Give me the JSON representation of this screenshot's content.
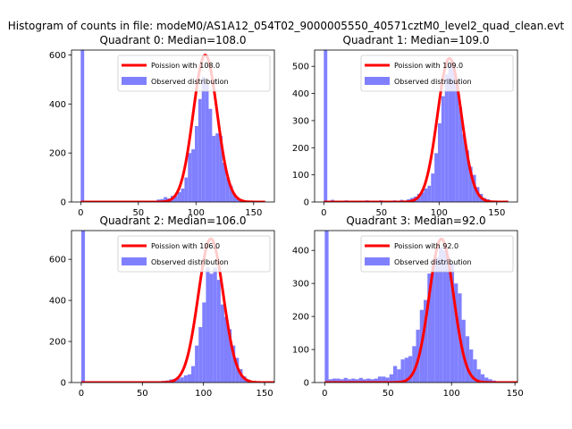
{
  "suptitle": "Histogram of counts in file: modeM0/AS1A12_054T02_9000005550_40571cztM0_level2_quad_clean.evt",
  "chart_data": [
    {
      "type": "bar",
      "title": "Quadrant 0: Median=108.0",
      "xlim": [
        -8,
        168
      ],
      "ylim": [
        0,
        620
      ],
      "xticks": [
        0,
        50,
        100,
        150
      ],
      "yticks": [
        0,
        200,
        400,
        600
      ],
      "median": 108.0,
      "bin_width": 3,
      "bins": [
        [
          0,
          620
        ],
        [
          63,
          5
        ],
        [
          66,
          10
        ],
        [
          69,
          12
        ],
        [
          72,
          20
        ],
        [
          75,
          15
        ],
        [
          78,
          25
        ],
        [
          81,
          25
        ],
        [
          84,
          40
        ],
        [
          87,
          55
        ],
        [
          90,
          100
        ],
        [
          93,
          200
        ],
        [
          96,
          215
        ],
        [
          99,
          310
        ],
        [
          102,
          420
        ],
        [
          105,
          510
        ],
        [
          108,
          480
        ],
        [
          111,
          380
        ],
        [
          114,
          270
        ],
        [
          117,
          280
        ],
        [
          120,
          270
        ],
        [
          123,
          160
        ],
        [
          126,
          100
        ],
        [
          129,
          65
        ],
        [
          132,
          30
        ],
        [
          135,
          15
        ],
        [
          138,
          10
        ],
        [
          141,
          5
        ]
      ],
      "fit": {
        "peak": 600,
        "sigma": 10.4
      },
      "series": [
        {
          "name": "Poission with 108.0",
          "type": "line",
          "color": "#ff0000"
        },
        {
          "name": "Observed distribution",
          "type": "bar",
          "color": "#8080ff"
        }
      ]
    },
    {
      "type": "bar",
      "title": "Quadrant 1: Median=109.0",
      "xlim": [
        -8,
        168
      ],
      "ylim": [
        0,
        560
      ],
      "xticks": [
        0,
        50,
        100,
        150
      ],
      "yticks": [
        0,
        100,
        200,
        300,
        400,
        500
      ],
      "median": 109.0,
      "bin_width": 3,
      "bins": [
        [
          0,
          560
        ],
        [
          6,
          8
        ],
        [
          12,
          5
        ],
        [
          18,
          6
        ],
        [
          24,
          5
        ],
        [
          30,
          5
        ],
        [
          36,
          6
        ],
        [
          42,
          5
        ],
        [
          48,
          6
        ],
        [
          54,
          5
        ],
        [
          60,
          6
        ],
        [
          66,
          8
        ],
        [
          72,
          10
        ],
        [
          75,
          15
        ],
        [
          78,
          20
        ],
        [
          81,
          30
        ],
        [
          84,
          35
        ],
        [
          87,
          50
        ],
        [
          90,
          60
        ],
        [
          93,
          105
        ],
        [
          96,
          180
        ],
        [
          99,
          290
        ],
        [
          102,
          390
        ],
        [
          105,
          470
        ],
        [
          108,
          510
        ],
        [
          111,
          490
        ],
        [
          114,
          430
        ],
        [
          117,
          350
        ],
        [
          120,
          250
        ],
        [
          123,
          190
        ],
        [
          126,
          130
        ],
        [
          129,
          100
        ],
        [
          132,
          55
        ],
        [
          135,
          30
        ],
        [
          138,
          15
        ],
        [
          141,
          10
        ],
        [
          144,
          5
        ]
      ],
      "fit": {
        "peak": 530,
        "sigma": 10.4
      },
      "series": [
        {
          "name": "Poission with 109.0",
          "type": "line",
          "color": "#ff0000"
        },
        {
          "name": "Observed distribution",
          "type": "bar",
          "color": "#8080ff"
        }
      ]
    },
    {
      "type": "bar",
      "title": "Quadrant 2: Median=106.0",
      "xlim": [
        -8,
        158
      ],
      "ylim": [
        0,
        740
      ],
      "xticks": [
        0,
        50,
        100,
        150
      ],
      "yticks": [
        0,
        200,
        400,
        600
      ],
      "median": 106.0,
      "bin_width": 3,
      "bins": [
        [
          0,
          740
        ],
        [
          63,
          5
        ],
        [
          66,
          8
        ],
        [
          69,
          10
        ],
        [
          72,
          15
        ],
        [
          75,
          18
        ],
        [
          78,
          20
        ],
        [
          81,
          25
        ],
        [
          84,
          35
        ],
        [
          87,
          40
        ],
        [
          90,
          80
        ],
        [
          93,
          180
        ],
        [
          96,
          270
        ],
        [
          99,
          390
        ],
        [
          102,
          560
        ],
        [
          105,
          530
        ],
        [
          108,
          560
        ],
        [
          111,
          500
        ],
        [
          114,
          380
        ],
        [
          117,
          320
        ],
        [
          120,
          260
        ],
        [
          123,
          180
        ],
        [
          126,
          120
        ],
        [
          129,
          65
        ],
        [
          132,
          30
        ],
        [
          135,
          15
        ],
        [
          138,
          8
        ],
        [
          141,
          4
        ]
      ],
      "fit": {
        "peak": 700,
        "sigma": 10.3
      },
      "series": [
        {
          "name": "Poission with 106.0",
          "type": "line",
          "color": "#ff0000"
        },
        {
          "name": "Observed distribution",
          "type": "bar",
          "color": "#8080ff"
        }
      ]
    },
    {
      "type": "bar",
      "title": "Quadrant 3: Median=92.0",
      "xlim": [
        -8,
        152
      ],
      "ylim": [
        0,
        460
      ],
      "xticks": [
        0,
        50,
        100,
        150
      ],
      "yticks": [
        0,
        100,
        200,
        300,
        400
      ],
      "median": 92.0,
      "bin_width": 3,
      "bins": [
        [
          0,
          460
        ],
        [
          3,
          10
        ],
        [
          6,
          12
        ],
        [
          9,
          12
        ],
        [
          12,
          10
        ],
        [
          15,
          14
        ],
        [
          18,
          10
        ],
        [
          21,
          12
        ],
        [
          24,
          10
        ],
        [
          27,
          14
        ],
        [
          30,
          10
        ],
        [
          33,
          12
        ],
        [
          36,
          10
        ],
        [
          39,
          12
        ],
        [
          42,
          18
        ],
        [
          45,
          18
        ],
        [
          48,
          15
        ],
        [
          51,
          25
        ],
        [
          54,
          50
        ],
        [
          57,
          40
        ],
        [
          60,
          70
        ],
        [
          63,
          75
        ],
        [
          66,
          80
        ],
        [
          69,
          110
        ],
        [
          72,
          160
        ],
        [
          75,
          220
        ],
        [
          78,
          250
        ],
        [
          81,
          330
        ],
        [
          84,
          360
        ],
        [
          87,
          380
        ],
        [
          90,
          410
        ],
        [
          93,
          400
        ],
        [
          96,
          380
        ],
        [
          99,
          360
        ],
        [
          102,
          300
        ],
        [
          105,
          270
        ],
        [
          108,
          190
        ],
        [
          111,
          140
        ],
        [
          114,
          100
        ],
        [
          117,
          70
        ],
        [
          120,
          40
        ],
        [
          123,
          25
        ],
        [
          126,
          15
        ],
        [
          129,
          10
        ],
        [
          132,
          6
        ]
      ],
      "fit": {
        "peak": 435,
        "sigma": 9.6
      },
      "series": [
        {
          "name": "Poission with 92.0",
          "type": "line",
          "color": "#ff0000"
        },
        {
          "name": "Observed distribution",
          "type": "bar",
          "color": "#8080ff"
        }
      ]
    }
  ]
}
